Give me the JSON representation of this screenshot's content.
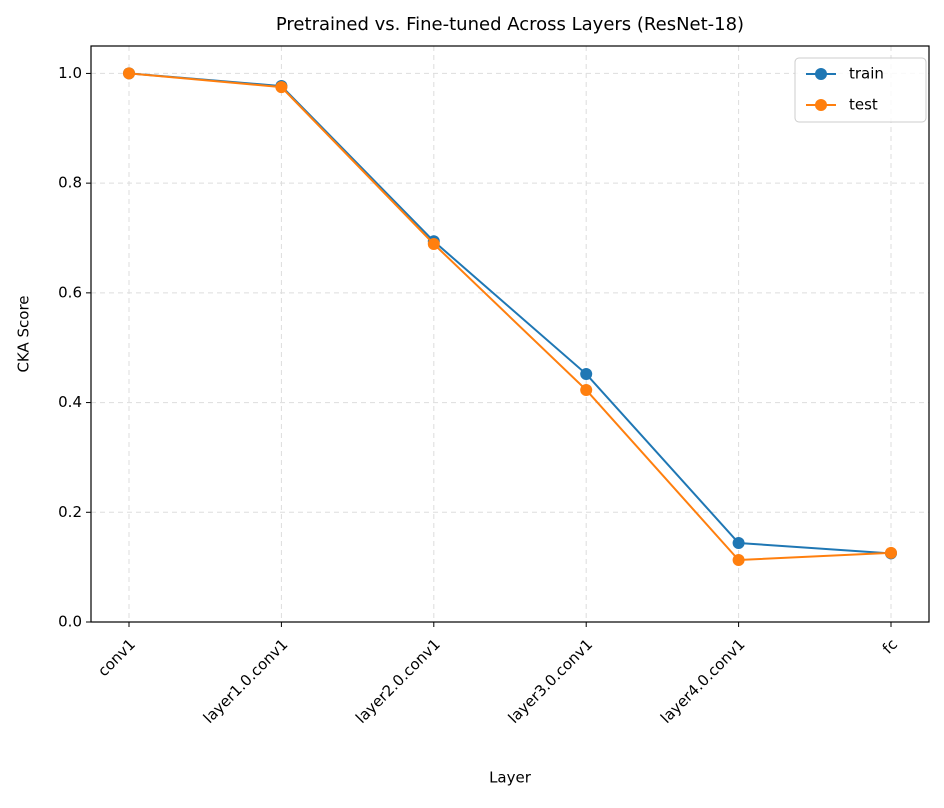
{
  "chart_data": {
    "type": "line",
    "title": "Pretrained vs. Fine-tuned Across Layers (ResNet-18)",
    "x_label": "Layer",
    "y_label": "CKA Score",
    "categories": [
      "conv1",
      "layer1.0.conv1",
      "layer2.0.conv1",
      "layer3.0.conv1",
      "layer4.0.conv1",
      "fc"
    ],
    "series": [
      {
        "name": "train",
        "color": "#1f77b4",
        "values": [
          1.0,
          0.977,
          0.694,
          0.452,
          0.144,
          0.125
        ]
      },
      {
        "name": "test",
        "color": "#ff7f0e",
        "values": [
          1.0,
          0.975,
          0.689,
          0.423,
          0.113,
          0.126
        ]
      }
    ],
    "ylim": [
      0,
      1.05
    ],
    "yticks": [
      {
        "value": 0,
        "label": "0.0"
      },
      0.2,
      0.4,
      0.6,
      0.8,
      {
        "value": 1,
        "label": "1.0"
      }
    ],
    "grid": true,
    "legend": "upper right"
  }
}
